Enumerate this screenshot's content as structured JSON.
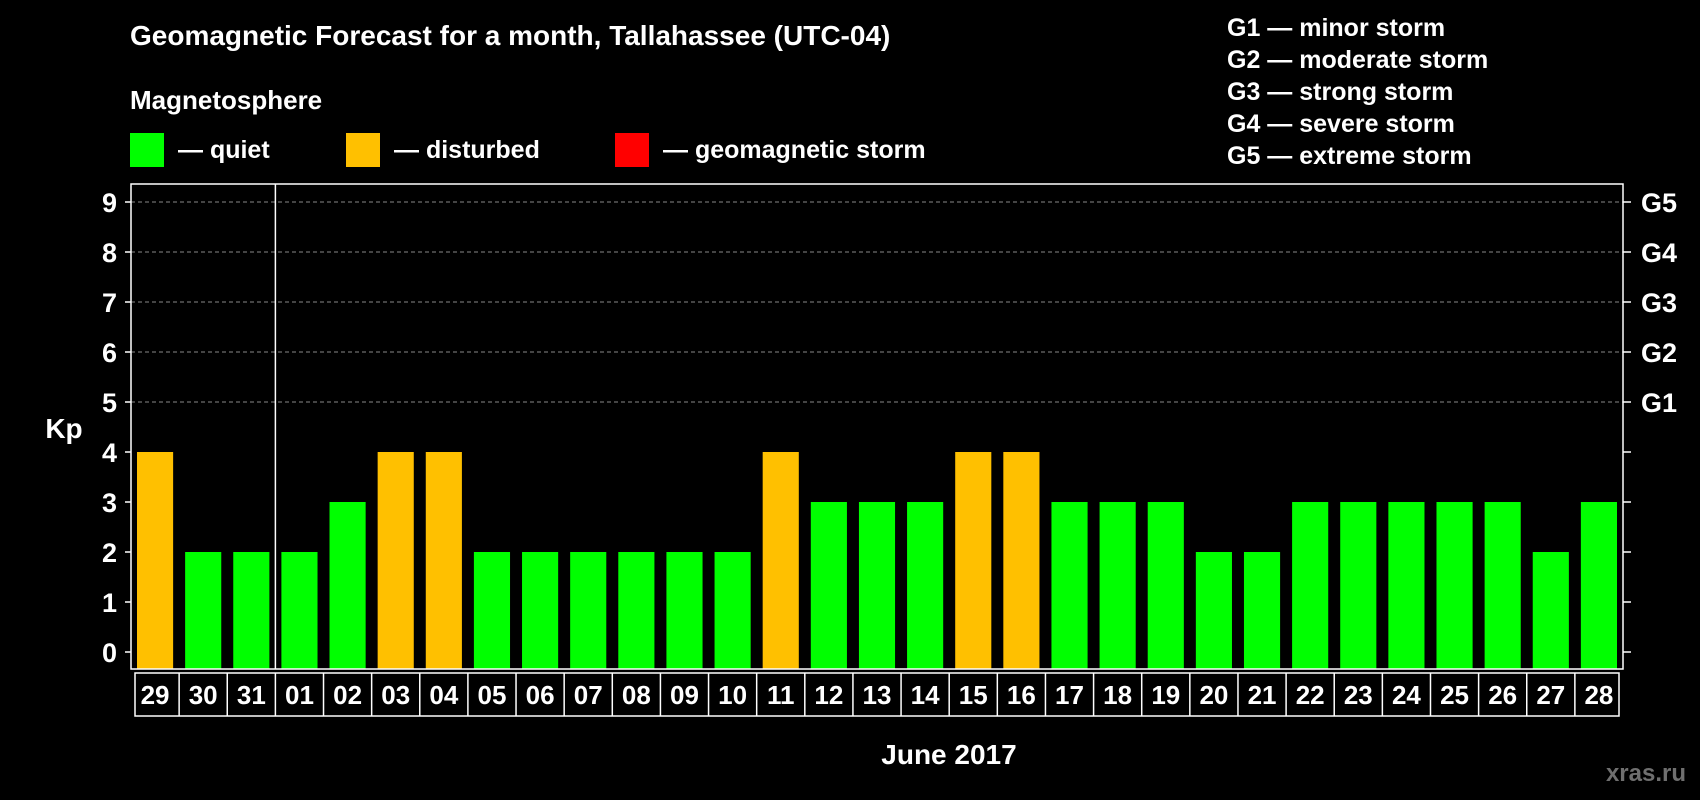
{
  "colors": {
    "quiet": "#00ff00",
    "disturbed": "#ffc000",
    "storm": "#ff0000",
    "grid": "#888888",
    "axis": "#ffffff"
  },
  "header": {
    "title": "Geomagnetic Forecast for a month, Tallahassee (UTC-04)",
    "subtitle": "Magnetosphere"
  },
  "legend": [
    {
      "label": "— quiet",
      "color": "#00ff00"
    },
    {
      "label": "— disturbed",
      "color": "#ffc000"
    },
    {
      "label": "— geomagnetic storm",
      "color": "#ff0000"
    }
  ],
  "storm_scale": [
    "G1 — minor storm",
    "G2 — moderate storm",
    "G3 — strong storm",
    "G4 — severe storm",
    "G5 — extreme storm"
  ],
  "watermark": "xras.ru",
  "chart_data": {
    "type": "bar",
    "ylabel": "Kp",
    "xlabel": "June 2017",
    "ylim": [
      0,
      9
    ],
    "yticks": [
      "0",
      "1",
      "2",
      "3",
      "4",
      "5",
      "6",
      "7",
      "8",
      "9"
    ],
    "right_ticks": [
      {
        "value": 5,
        "label": "G1"
      },
      {
        "value": 6,
        "label": "G2"
      },
      {
        "value": 7,
        "label": "G3"
      },
      {
        "value": 8,
        "label": "G4"
      },
      {
        "value": 9,
        "label": "G5"
      }
    ],
    "grid": true,
    "month_separator_after_index": 2,
    "categories": [
      "29",
      "30",
      "31",
      "01",
      "02",
      "03",
      "04",
      "05",
      "06",
      "07",
      "08",
      "09",
      "10",
      "11",
      "12",
      "13",
      "14",
      "15",
      "16",
      "17",
      "18",
      "19",
      "20",
      "21",
      "22",
      "23",
      "24",
      "25",
      "26",
      "27",
      "28"
    ],
    "values": [
      4,
      2,
      2,
      2,
      3,
      4,
      4,
      2,
      2,
      2,
      2,
      2,
      2,
      4,
      3,
      3,
      3,
      4,
      4,
      3,
      3,
      3,
      2,
      2,
      3,
      3,
      3,
      3,
      3,
      2,
      3
    ],
    "status": [
      "disturbed",
      "quiet",
      "quiet",
      "quiet",
      "quiet",
      "disturbed",
      "disturbed",
      "quiet",
      "quiet",
      "quiet",
      "quiet",
      "quiet",
      "quiet",
      "disturbed",
      "quiet",
      "quiet",
      "quiet",
      "disturbed",
      "disturbed",
      "quiet",
      "quiet",
      "quiet",
      "quiet",
      "quiet",
      "quiet",
      "quiet",
      "quiet",
      "quiet",
      "quiet",
      "quiet",
      "quiet"
    ]
  }
}
